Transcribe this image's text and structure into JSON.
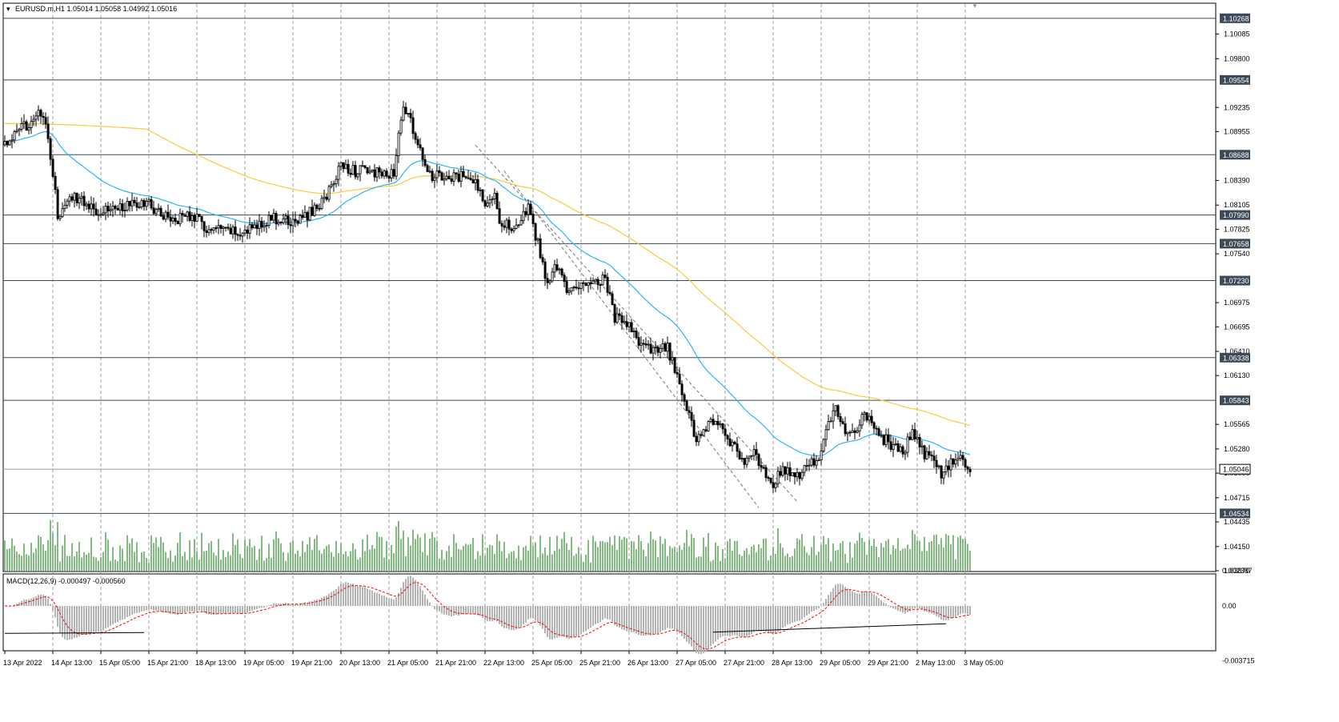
{
  "header": {
    "symbol_info": "EURUSD.m,H1  1.05014 1.05058 1.04992 1.05016"
  },
  "macd": {
    "label": "MACD(12,26,9) -0.000497 -0.000560",
    "axis_labels": [
      "0.002387",
      "0.00",
      "-0.003715"
    ]
  },
  "price_axis": {
    "tick_labels": [
      "1.10085",
      "1.09800",
      "1.09235",
      "1.08955",
      "1.08390",
      "1.08105",
      "1.07825",
      "1.07540",
      "1.06975",
      "1.06695",
      "1.06410",
      "1.06130",
      "1.05565",
      "1.05280",
      "1.05000",
      "1.04715",
      "1.04435",
      "1.04150",
      "1.03870"
    ],
    "levels": [
      {
        "label": "1.10268",
        "value": 1.10268
      },
      {
        "label": "1.09554",
        "value": 1.09554
      },
      {
        "label": "1.08688",
        "value": 1.08688
      },
      {
        "label": "1.07990",
        "value": 1.0799
      },
      {
        "label": "1.07658",
        "value": 1.07658
      },
      {
        "label": "1.07230",
        "value": 1.0723
      },
      {
        "label": "1.06338",
        "value": 1.06338
      },
      {
        "label": "1.05843",
        "value": 1.05843
      },
      {
        "label": "1.05046",
        "value": 1.05046
      },
      {
        "label": "1.04534",
        "value": 1.04534
      }
    ]
  },
  "time_axis": {
    "labels": [
      "13 Apr 2022",
      "14 Apr 13:00",
      "15 Apr 05:00",
      "15 Apr 21:00",
      "18 Apr 13:00",
      "19 Apr 05:00",
      "19 Apr 21:00",
      "20 Apr 13:00",
      "21 Apr 05:00",
      "21 Apr 21:00",
      "22 Apr 13:00",
      "25 Apr 05:00",
      "25 Apr 21:00",
      "26 Apr 13:00",
      "27 Apr 05:00",
      "27 Apr 21:00",
      "28 Apr 13:00",
      "29 Apr 05:00",
      "29 Apr 21:00",
      "2 May 13:00",
      "3 May 05:00"
    ]
  },
  "colors": {
    "candle": "#000000",
    "ma_fast": "#29b6f6",
    "ma_slow": "#ffc83d",
    "volume": "#2e8b2e",
    "macd_hist": "#b4b4b4",
    "macd_signal": "#ff0000",
    "level_line": "#3c4a5a",
    "grid": "#a0a0a0"
  },
  "chart_data": {
    "type": "candlestick",
    "symbol": "EURUSD.m",
    "timeframe": "H1",
    "ylim": [
      1.0387,
      1.1035
    ],
    "price_path_anchors": [
      [
        0,
        1.0882
      ],
      [
        6,
        1.0895
      ],
      [
        11,
        1.091
      ],
      [
        15,
        1.0915
      ],
      [
        18,
        1.089
      ],
      [
        20,
        1.0845
      ],
      [
        22,
        1.08
      ],
      [
        25,
        1.0805
      ],
      [
        28,
        1.0822
      ],
      [
        33,
        1.0815
      ],
      [
        38,
        1.0805
      ],
      [
        45,
        1.0808
      ],
      [
        52,
        1.081
      ],
      [
        60,
        1.0812
      ],
      [
        66,
        1.0798
      ],
      [
        72,
        1.0795
      ],
      [
        78,
        1.08
      ],
      [
        84,
        1.0782
      ],
      [
        92,
        1.078
      ],
      [
        100,
        1.0778
      ],
      [
        106,
        1.079
      ],
      [
        112,
        1.0795
      ],
      [
        118,
        1.079
      ],
      [
        124,
        1.0795
      ],
      [
        130,
        1.0808
      ],
      [
        136,
        1.083
      ],
      [
        140,
        1.0858
      ],
      [
        146,
        1.085
      ],
      [
        152,
        1.085
      ],
      [
        158,
        1.0845
      ],
      [
        162,
        1.0845
      ],
      [
        164,
        1.09
      ],
      [
        166,
        1.0922
      ],
      [
        170,
        1.09
      ],
      [
        174,
        1.086
      ],
      [
        178,
        1.0845
      ],
      [
        185,
        1.084
      ],
      [
        192,
        1.0845
      ],
      [
        196,
        1.0835
      ],
      [
        200,
        1.0815
      ],
      [
        204,
        1.0825
      ],
      [
        206,
        1.0795
      ],
      [
        210,
        1.0785
      ],
      [
        214,
        1.079
      ],
      [
        218,
        1.0805
      ],
      [
        222,
        1.0765
      ],
      [
        226,
        1.072
      ],
      [
        230,
        1.074
      ],
      [
        234,
        1.0715
      ],
      [
        238,
        1.071
      ],
      [
        244,
        1.0725
      ],
      [
        250,
        1.0725
      ],
      [
        254,
        1.068
      ],
      [
        258,
        1.0675
      ],
      [
        262,
        1.066
      ],
      [
        266,
        1.0645
      ],
      [
        270,
        1.064
      ],
      [
        276,
        1.0645
      ],
      [
        280,
        1.061
      ],
      [
        284,
        1.0575
      ],
      [
        288,
        1.054
      ],
      [
        292,
        1.055
      ],
      [
        296,
        1.0565
      ],
      [
        300,
        1.0545
      ],
      [
        304,
        1.053
      ],
      [
        308,
        1.051
      ],
      [
        312,
        1.0525
      ],
      [
        316,
        1.05
      ],
      [
        320,
        1.049
      ],
      [
        324,
        1.0505
      ],
      [
        328,
        1.0495
      ],
      [
        332,
        1.05
      ],
      [
        336,
        1.051
      ],
      [
        340,
        1.0525
      ],
      [
        344,
        1.0565
      ],
      [
        346,
        1.0575
      ],
      [
        350,
        1.0545
      ],
      [
        354,
        1.0545
      ],
      [
        358,
        1.057
      ],
      [
        362,
        1.0555
      ],
      [
        366,
        1.054
      ],
      [
        370,
        1.053
      ],
      [
        374,
        1.0525
      ],
      [
        378,
        1.0545
      ],
      [
        382,
        1.0525
      ],
      [
        386,
        1.0515
      ],
      [
        390,
        1.05
      ],
      [
        394,
        1.051
      ],
      [
        398,
        1.052
      ],
      [
        402,
        1.0502
      ]
    ],
    "channel_lines": [
      [
        [
          196,
          1.088
        ],
        [
          330,
          1.0467
        ]
      ],
      [
        [
          208,
          1.085
        ],
        [
          314,
          1.046
        ]
      ]
    ],
    "trendlines_macd": [
      [
        [
          0,
          -0.00185
        ],
        [
          58,
          -0.0018
        ]
      ],
      [
        [
          295,
          -0.00177
        ],
        [
          392,
          -0.0012
        ]
      ]
    ]
  }
}
